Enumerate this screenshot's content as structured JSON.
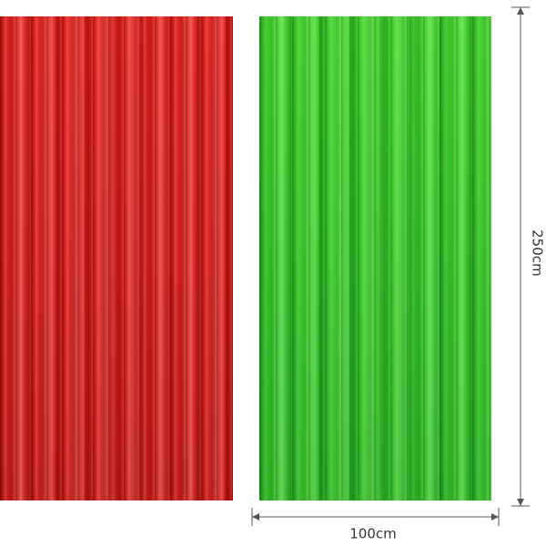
{
  "dimensions": {
    "height": "250cm",
    "width": "100cm"
  }
}
